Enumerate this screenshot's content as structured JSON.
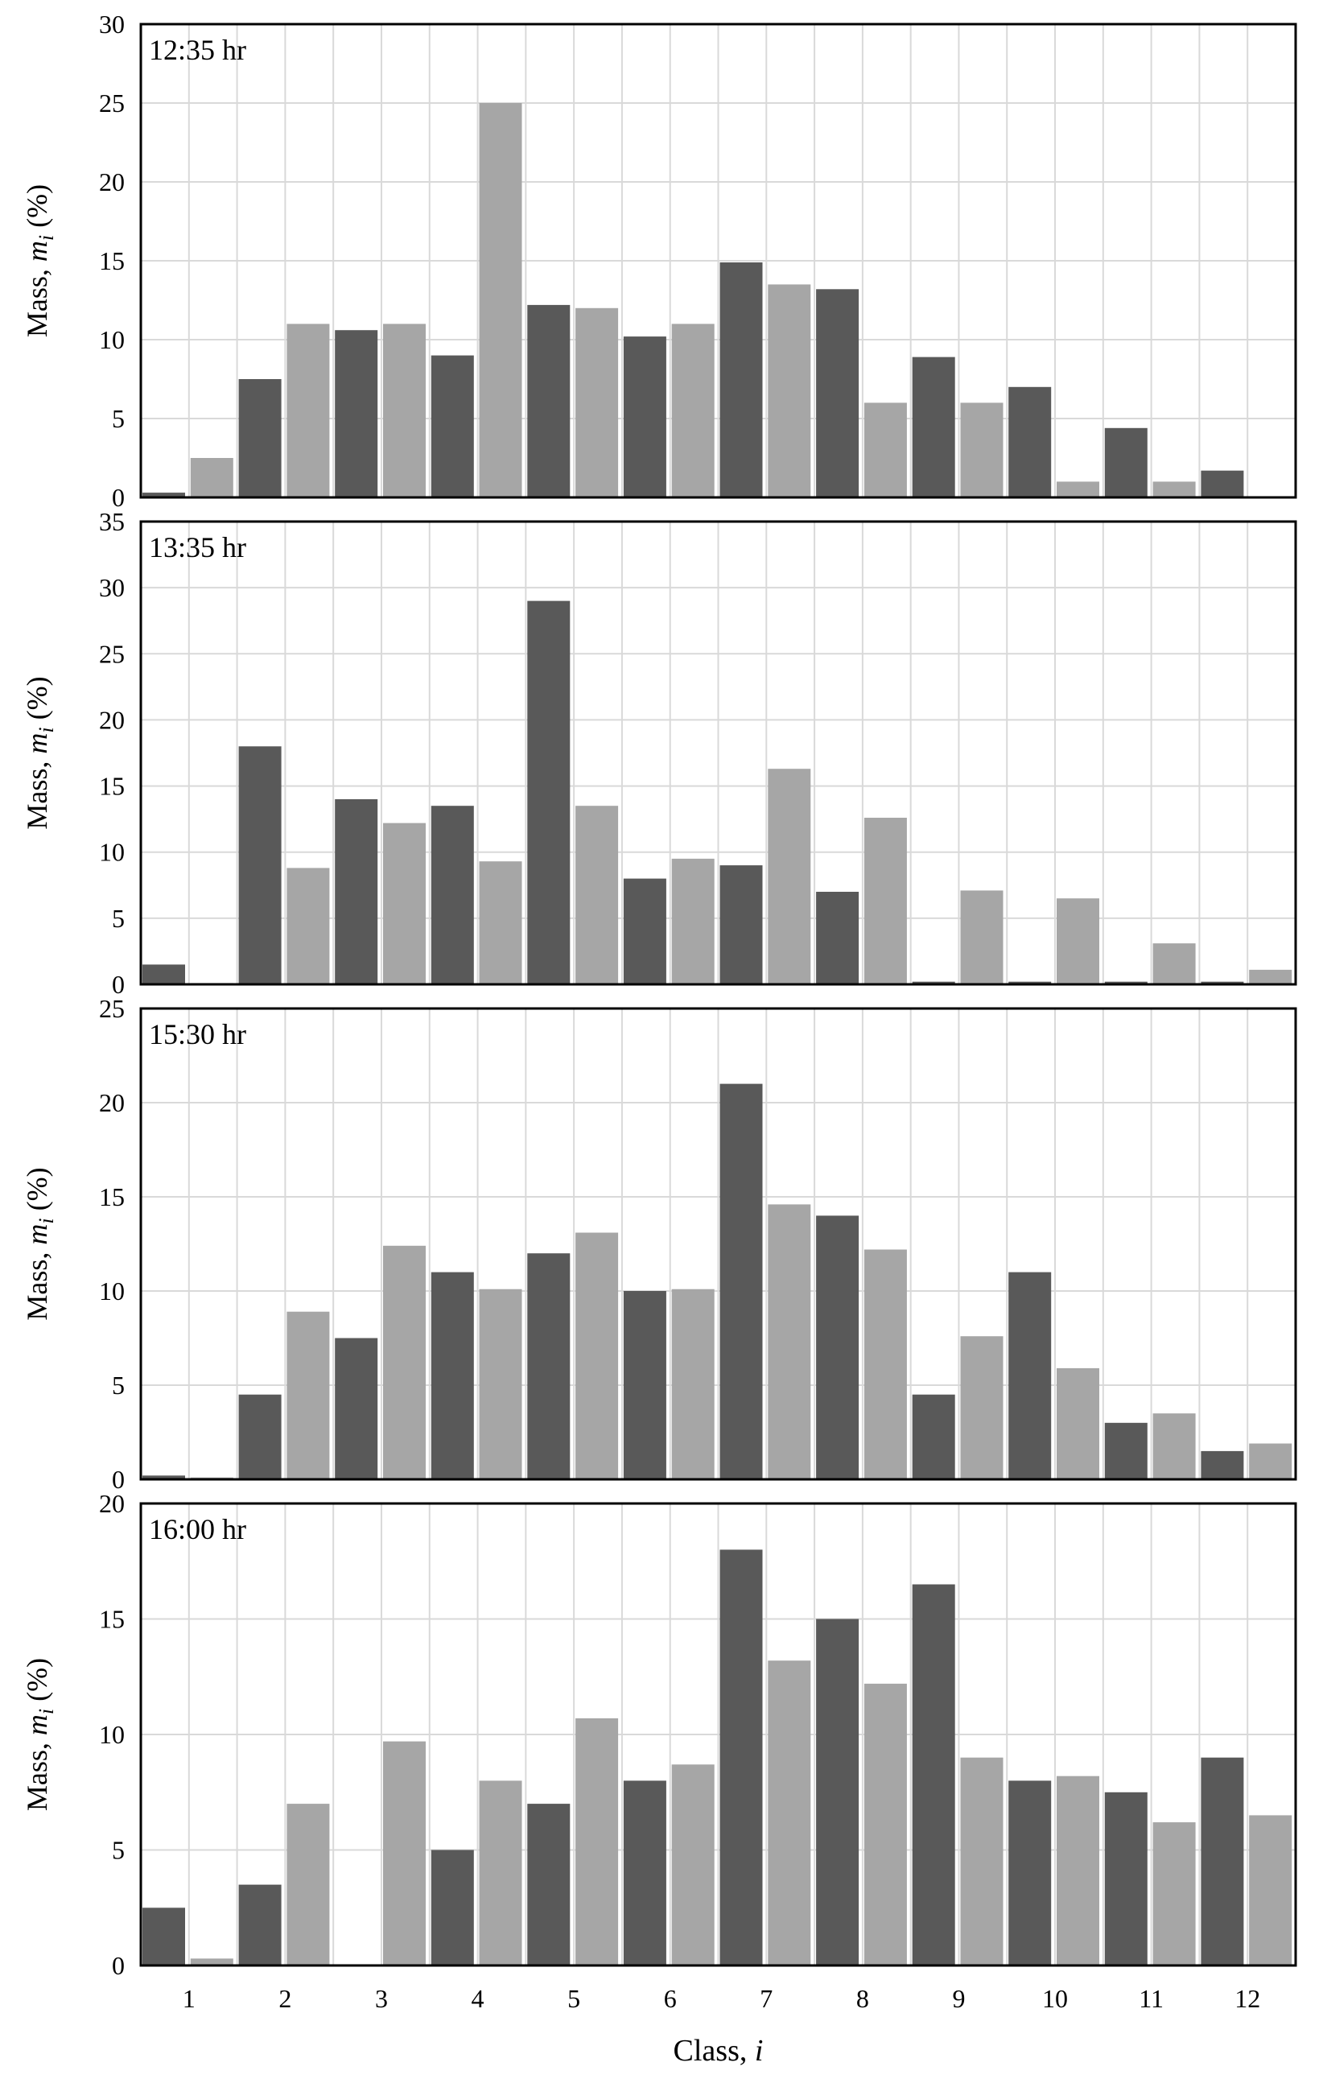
{
  "colors": {
    "dark": "#595959",
    "light": "#a6a6a6",
    "grid": "#d9d9d9"
  },
  "chart_data": [
    {
      "type": "bar",
      "title": "12:35 hr",
      "ylabel": "Mass, m_i (%)",
      "ylim": [
        0,
        30
      ],
      "yticks": [
        "0",
        "5",
        "10",
        "15",
        "20",
        "25",
        "30"
      ],
      "x": [
        1,
        2,
        3,
        4,
        5,
        6,
        7,
        8,
        9,
        10,
        11,
        12
      ],
      "series": [
        {
          "name": "dark",
          "color": "#595959",
          "values": [
            0.3,
            7.5,
            10.6,
            9.0,
            12.2,
            10.2,
            14.9,
            13.2,
            8.9,
            7.0,
            4.4,
            1.7
          ]
        },
        {
          "name": "light",
          "color": "#a6a6a6",
          "values": [
            2.5,
            11.0,
            11.0,
            25.0,
            12.0,
            11.0,
            13.5,
            6.0,
            6.0,
            1.0,
            1.0,
            0
          ]
        }
      ],
      "bar_order": [
        "dark",
        "light"
      ]
    },
    {
      "type": "bar",
      "title": "13:35 hr",
      "ylabel": "Mass, m_i (%)",
      "ylim": [
        0,
        35
      ],
      "yticks": [
        "0",
        "5",
        "10",
        "15",
        "20",
        "25",
        "30",
        "35"
      ],
      "x": [
        1,
        2,
        3,
        4,
        5,
        6,
        7,
        8,
        9,
        10,
        11,
        12
      ],
      "series": [
        {
          "name": "dark",
          "color": "#595959",
          "values": [
            1.5,
            18.0,
            14.0,
            13.5,
            29.0,
            8.0,
            9.0,
            7.0,
            0.2,
            0.2,
            0.2,
            0.2
          ]
        },
        {
          "name": "light",
          "color": "#a6a6a6",
          "values": [
            0.1,
            8.8,
            12.2,
            9.3,
            13.5,
            9.5,
            16.3,
            12.6,
            7.1,
            6.5,
            3.1,
            1.1
          ]
        }
      ],
      "bar_order": [
        "dark",
        "light"
      ]
    },
    {
      "type": "bar",
      "title": "15:30 hr",
      "ylabel": "Mass, m_i (%)",
      "ylim": [
        0,
        25
      ],
      "yticks": [
        "0",
        "5",
        "10",
        "15",
        "20",
        "25"
      ],
      "x": [
        1,
        2,
        3,
        4,
        5,
        6,
        7,
        8,
        9,
        10,
        11,
        12
      ],
      "series": [
        {
          "name": "dark",
          "color": "#595959",
          "values": [
            0.2,
            4.5,
            7.5,
            11.0,
            12.0,
            10.0,
            21.0,
            14.0,
            4.5,
            11.0,
            3.0,
            1.5
          ]
        },
        {
          "name": "light",
          "color": "#a6a6a6",
          "values": [
            0.1,
            8.9,
            12.4,
            10.1,
            13.1,
            10.1,
            14.6,
            12.2,
            7.6,
            5.9,
            3.5,
            1.9
          ]
        }
      ],
      "bar_order": [
        "dark",
        "light"
      ]
    },
    {
      "type": "bar",
      "title": "16:00 hr",
      "ylabel": "Mass, m_i (%)",
      "xlabel": "Class, i",
      "ylim": [
        0,
        20
      ],
      "yticks": [
        "0",
        "5",
        "10",
        "15",
        "20"
      ],
      "x": [
        1,
        2,
        3,
        4,
        5,
        6,
        7,
        8,
        9,
        10,
        11,
        12
      ],
      "xticks": [
        "1",
        "2",
        "3",
        "4",
        "5",
        "6",
        "7",
        "8",
        "9",
        "10",
        "11",
        "12"
      ],
      "series": [
        {
          "name": "dark",
          "color": "#595959",
          "values": [
            2.5,
            3.5,
            0,
            5.0,
            7.0,
            8.0,
            18.0,
            15.0,
            16.5,
            8.0,
            7.5,
            9.0
          ]
        },
        {
          "name": "light",
          "color": "#a6a6a6",
          "values": [
            0.3,
            7.0,
            9.7,
            8.0,
            10.7,
            8.7,
            13.2,
            12.2,
            9.0,
            8.2,
            6.2,
            6.5
          ]
        }
      ],
      "bar_order": [
        "dark",
        "light"
      ]
    }
  ]
}
